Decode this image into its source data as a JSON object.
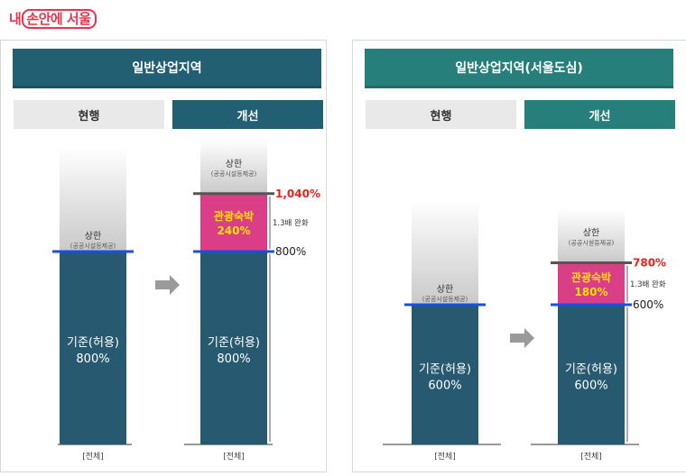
{
  "logo": {
    "text1": "내",
    "text2": "손안에 서울"
  },
  "colors": {
    "panel1_header": "#235f72",
    "panel2_header": "#267f7a",
    "bar": "#275a70",
    "bonus": "#d93e86",
    "bonus_text": "#ffe300",
    "line_blue": "#1a4fe0",
    "red_text": "#e8221b"
  },
  "panels": [
    {
      "title": "일반상업지역",
      "tab_current": "현행",
      "tab_improved": "개선"
    },
    {
      "title": "일반상업지역(서울도심)",
      "tab_current": "현행",
      "tab_improved": "개선"
    }
  ],
  "chart_data": [
    {
      "type": "bar",
      "title": "일반상업지역",
      "categories": [
        "현행",
        "개선"
      ],
      "series": [
        {
          "name": "기준(허용)",
          "values": [
            800,
            800
          ]
        },
        {
          "name": "관광숙박",
          "values": [
            0,
            240
          ]
        }
      ],
      "bar_labels": {
        "base": [
          "기준(허용)",
          "800%"
        ],
        "bonus": [
          "관광숙박",
          "240%"
        ]
      },
      "upper_label": "상한",
      "upper_sub": "(공공시설등제공)",
      "total_label": "1,040%",
      "base_pct_label": "800%",
      "relax_label": "1.3배 완화",
      "x_caption": "[전체]",
      "arrow_icon": "right-arrow"
    },
    {
      "type": "bar",
      "title": "일반상업지역(서울도심)",
      "categories": [
        "현행",
        "개선"
      ],
      "series": [
        {
          "name": "기준(허용)",
          "values": [
            600,
            600
          ]
        },
        {
          "name": "관광숙박",
          "values": [
            0,
            180
          ]
        }
      ],
      "bar_labels": {
        "base": [
          "기준(허용)",
          "600%"
        ],
        "bonus": [
          "관광숙박",
          "180%"
        ]
      },
      "upper_label": "상한",
      "upper_sub": "(공공시설등제공)",
      "total_label": "780%",
      "base_pct_label": "600%",
      "relax_label": "1.3배 완화",
      "x_caption": "[전체]",
      "arrow_icon": "right-arrow"
    }
  ]
}
